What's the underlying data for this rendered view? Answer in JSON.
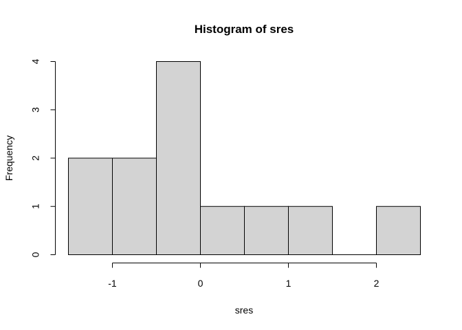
{
  "chart_data": {
    "type": "bar",
    "subtype": "histogram",
    "title": "Histogram of sres",
    "xlabel": "sres",
    "ylabel": "Frequency",
    "bins": [
      {
        "start": -1.5,
        "end": -1.0,
        "count": 2
      },
      {
        "start": -1.0,
        "end": -0.5,
        "count": 2
      },
      {
        "start": -0.5,
        "end": 0.0,
        "count": 4
      },
      {
        "start": 0.0,
        "end": 0.5,
        "count": 1
      },
      {
        "start": 0.5,
        "end": 1.0,
        "count": 1
      },
      {
        "start": 1.0,
        "end": 1.5,
        "count": 1
      },
      {
        "start": 1.5,
        "end": 2.0,
        "count": 0
      },
      {
        "start": 2.0,
        "end": 2.5,
        "count": 1
      }
    ],
    "xlim": [
      -1.5,
      2.5
    ],
    "ylim": [
      0,
      4
    ],
    "x_ticks": [
      -1,
      0,
      1,
      2
    ],
    "x_tick_labels": [
      "-1",
      "0",
      "1",
      "2"
    ],
    "y_ticks": [
      0,
      1,
      2,
      3,
      4
    ],
    "y_tick_labels": [
      "0",
      "1",
      "2",
      "3",
      "4"
    ],
    "bar_fill": "#d3d3d3",
    "bar_stroke": "#000000",
    "grid": false,
    "legend": "none"
  }
}
